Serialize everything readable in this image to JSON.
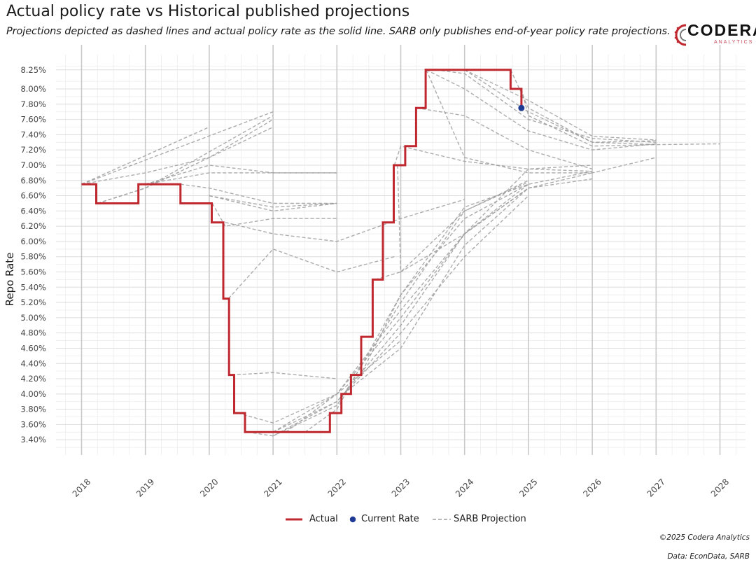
{
  "header": {
    "title": "Actual policy rate vs Historical published projections",
    "subtitle": "Projections depicted as dashed lines and actual policy rate as the solid line. SARB only publishes end-of-year policy rate projections."
  },
  "logo": {
    "name": "CODERA",
    "sub": "ANALYTICS"
  },
  "footer": {
    "copyright": "©2025 Codera Analytics",
    "source": "Data: EconData, SARB"
  },
  "legend": {
    "actual": "Actual",
    "current": "Current Rate",
    "projection": "SARB Projection"
  },
  "colors": {
    "actual": "#c0282f",
    "current": "#1f3a93",
    "projection": "#9e9e9e",
    "grid": "#dedede"
  },
  "chart_data": {
    "type": "line",
    "title": "Actual policy rate vs Historical published projections",
    "ylabel": "Repo Rate",
    "xlabel": "",
    "xlim": [
      2017.6,
      2028.4
    ],
    "ylim": [
      3.2,
      8.45
    ],
    "x_ticks": [
      2018,
      2019,
      2020,
      2021,
      2022,
      2023,
      2024,
      2025,
      2026,
      2027,
      2028
    ],
    "y_ticks": [
      3.4,
      3.6,
      3.8,
      4.0,
      4.2,
      4.4,
      4.6,
      4.8,
      5.0,
      5.2,
      5.4,
      5.6,
      5.8,
      6.0,
      6.2,
      6.4,
      6.6,
      6.8,
      7.0,
      7.2,
      7.4,
      7.6,
      7.8,
      8.0,
      8.25
    ],
    "y_tick_labels": [
      "3.40%",
      "3.60%",
      "3.80%",
      "4.00%",
      "4.20%",
      "4.40%",
      "4.60%",
      "4.80%",
      "5.00%",
      "5.20%",
      "5.40%",
      "5.60%",
      "5.80%",
      "6.00%",
      "6.20%",
      "6.40%",
      "6.60%",
      "6.80%",
      "7.00%",
      "7.20%",
      "7.40%",
      "7.60%",
      "7.80%",
      "8.00%",
      "8.25%"
    ],
    "grid": true,
    "legend_position": "bottom",
    "actual": {
      "name": "Actual",
      "x": [
        2018.0,
        2018.23,
        2018.89,
        2019.55,
        2020.04,
        2020.22,
        2020.31,
        2020.39,
        2020.56,
        2021.89,
        2022.07,
        2022.22,
        2022.38,
        2022.56,
        2022.72,
        2022.89,
        2023.07,
        2023.24,
        2023.39,
        2024.72,
        2024.89
      ],
      "y": [
        6.75,
        6.5,
        6.75,
        6.5,
        6.25,
        5.25,
        4.25,
        3.75,
        3.5,
        3.75,
        4.0,
        4.25,
        4.75,
        5.5,
        6.25,
        7.0,
        7.25,
        7.75,
        8.25,
        8.0,
        7.75
      ]
    },
    "current_rate": {
      "name": "Current Rate",
      "x": 2024.89,
      "y": 7.75
    },
    "projections": [
      {
        "x": [
          2018.0,
          2020.0
        ],
        "y": [
          6.75,
          7.5
        ]
      },
      {
        "x": [
          2018.0,
          2021.0
        ],
        "y": [
          6.75,
          7.7
        ]
      },
      {
        "x": [
          2018.0,
          2019.0,
          2020.0,
          2021.0
        ],
        "y": [
          6.75,
          6.9,
          7.1,
          7.5
        ]
      },
      {
        "x": [
          2018.25,
          2019.0,
          2021.0
        ],
        "y": [
          6.5,
          6.7,
          7.65
        ]
      },
      {
        "x": [
          2018.25,
          2019.0,
          2020.0,
          2021.0
        ],
        "y": [
          6.5,
          6.7,
          7.1,
          7.6
        ]
      },
      {
        "x": [
          2019.0,
          2020.0,
          2021.0,
          2022.0
        ],
        "y": [
          6.75,
          7.0,
          6.9,
          6.9
        ]
      },
      {
        "x": [
          2019.0,
          2020.0,
          2021.0,
          2022.0
        ],
        "y": [
          6.75,
          6.9,
          6.9,
          6.9
        ]
      },
      {
        "x": [
          2019.55,
          2020.0,
          2021.0,
          2022.0
        ],
        "y": [
          6.75,
          6.7,
          6.5,
          6.5
        ]
      },
      {
        "x": [
          2020.0,
          2021.0,
          2022.0
        ],
        "y": [
          6.6,
          6.45,
          6.5
        ]
      },
      {
        "x": [
          2020.0,
          2021.0,
          2022.0
        ],
        "y": [
          6.6,
          6.4,
          6.5
        ]
      },
      {
        "x": [
          2020.05,
          2020.25,
          2021.0,
          2022.0
        ],
        "y": [
          6.5,
          6.2,
          6.3,
          6.3
        ]
      },
      {
        "x": [
          2020.25,
          2021.0,
          2022.0,
          2023.0,
          2024.0
        ],
        "y": [
          6.25,
          6.1,
          6.0,
          6.3,
          6.55
        ]
      },
      {
        "x": [
          2020.3,
          2021.0,
          2022.0,
          2022.9
        ],
        "y": [
          5.25,
          5.9,
          5.6,
          5.8
        ]
      },
      {
        "x": [
          2020.35,
          2021.0,
          2022.0
        ],
        "y": [
          4.25,
          4.28,
          4.2
        ]
      },
      {
        "x": [
          2020.45,
          2021.0,
          2022.0,
          2023.0
        ],
        "y": [
          3.75,
          3.62,
          4.0,
          4.7
        ]
      },
      {
        "x": [
          2020.6,
          2021.0,
          2022.0,
          2023.0,
          2024.0,
          2025.0
        ],
        "y": [
          3.5,
          3.45,
          3.9,
          4.9,
          6.1,
          6.75
        ]
      },
      {
        "x": [
          2021.0,
          2022.0,
          2023.0,
          2024.0,
          2025.0
        ],
        "y": [
          3.5,
          4.0,
          5.0,
          6.1,
          6.7
        ]
      },
      {
        "x": [
          2021.0,
          2022.0,
          2023.0,
          2024.0,
          2025.0
        ],
        "y": [
          3.5,
          3.9,
          4.8,
          5.8,
          6.6
        ]
      },
      {
        "x": [
          2021.0,
          2022.0,
          2023.0,
          2024.0,
          2025.0
        ],
        "y": [
          3.45,
          3.85,
          5.2,
          6.4,
          6.8
        ]
      },
      {
        "x": [
          2021.2,
          2022.0,
          2023.0,
          2024.0,
          2025.0,
          2026.0
        ],
        "y": [
          3.5,
          4.0,
          5.1,
          6.1,
          6.7,
          6.9
        ]
      },
      {
        "x": [
          2021.5,
          2022.0,
          2023.0,
          2024.0,
          2025.0,
          2026.0
        ],
        "y": [
          3.5,
          3.8,
          5.3,
          6.45,
          6.75,
          6.92
        ]
      },
      {
        "x": [
          2022.1,
          2023.0,
          2024.0,
          2025.0,
          2026.0
        ],
        "y": [
          4.0,
          4.6,
          5.95,
          6.7,
          6.82
        ]
      },
      {
        "x": [
          2022.4,
          2023.0,
          2024.0,
          2025.0
        ],
        "y": [
          4.3,
          5.3,
          6.3,
          6.75
        ]
      },
      {
        "x": [
          2022.6,
          2023.0,
          2024.0,
          2025.0
        ],
        "y": [
          5.5,
          5.6,
          6.4,
          6.78
        ]
      },
      {
        "x": [
          2022.9,
          2023.0,
          2024.0,
          2025.0,
          2026.0
        ],
        "y": [
          7.0,
          7.25,
          7.05,
          6.95,
          6.92
        ]
      },
      {
        "x": [
          2022.95,
          2023.0,
          2024.0,
          2025.0,
          2026.0
        ],
        "y": [
          7.0,
          5.6,
          6.1,
          6.95,
          7.0
        ]
      },
      {
        "x": [
          2023.25,
          2024.0,
          2025.0,
          2026.0
        ],
        "y": [
          7.75,
          7.65,
          7.2,
          6.95
        ]
      },
      {
        "x": [
          2023.4,
          2024.0,
          2025.0,
          2026.0,
          2027.0
        ],
        "y": [
          8.25,
          7.1,
          6.9,
          6.9,
          7.1
        ]
      },
      {
        "x": [
          2023.4,
          2024.0,
          2025.0,
          2026.0,
          2027.0
        ],
        "y": [
          8.25,
          8.0,
          7.45,
          7.2,
          7.28
        ]
      },
      {
        "x": [
          2023.55,
          2024.0,
          2025.0,
          2026.0,
          2027.0
        ],
        "y": [
          8.25,
          8.2,
          7.6,
          7.35,
          7.3
        ]
      },
      {
        "x": [
          2024.0,
          2025.0,
          2026.0,
          2027.0
        ],
        "y": [
          8.25,
          7.7,
          7.3,
          7.32
        ]
      },
      {
        "x": [
          2024.0,
          2025.0,
          2026.0,
          2027.0
        ],
        "y": [
          8.25,
          7.85,
          7.38,
          7.33
        ]
      },
      {
        "x": [
          2024.72,
          2025.0,
          2026.0,
          2027.0,
          2028.0
        ],
        "y": [
          8.25,
          7.75,
          7.3,
          7.27,
          7.28
        ]
      },
      {
        "x": [
          2024.89,
          2025.0,
          2026.0,
          2027.0
        ],
        "y": [
          8.0,
          7.65,
          7.25,
          7.27
        ]
      }
    ]
  }
}
